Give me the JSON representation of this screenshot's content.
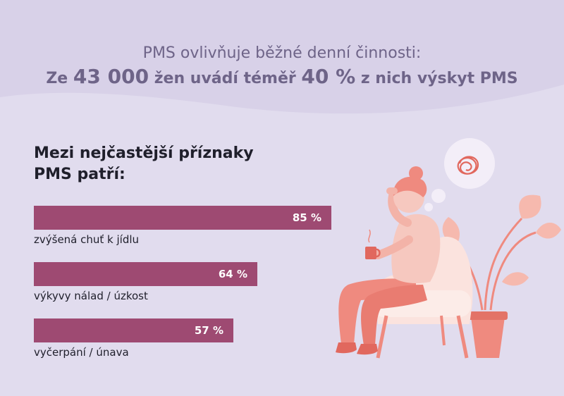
{
  "header": {
    "subtitle": "PMS ovlivňuje běžné denní činnosti:",
    "title_parts": [
      "Ze ",
      "43 000",
      " žen uvádí téměř ",
      "40 %",
      " z nich výskyt PMS"
    ]
  },
  "section_title": "Mezi nejčastější příznaky PMS patří:",
  "chart_data": {
    "type": "bar",
    "orientation": "horizontal",
    "title": "Mezi nejčastější příznaky PMS patří:",
    "unit": "%",
    "xlim": [
      0,
      100
    ],
    "grid": false,
    "categories": [
      "zvýšená chuť k jídlu",
      "výkyvy nálad / úzkost",
      "vyčerpání / únava"
    ],
    "values": [
      85,
      64,
      57
    ],
    "value_labels": [
      "85 %",
      "64 %",
      "57 %"
    ],
    "bar_color": "#9e4a72"
  },
  "colors": {
    "background": "#e1dcee",
    "wave": "#d6cfe6",
    "header_text": "#6e6488",
    "bar": "#9e4a72",
    "illustration_primary": "#ef8a7f",
    "illustration_light": "#f6c8bf",
    "chair": "#fbe3de"
  },
  "illustration": {
    "icon": "woman-with-headache-icon",
    "plant_icon": "potted-plant-icon",
    "thought_icon": "thought-bubble-scribble-icon",
    "cup_icon": "hot-drink-cup-icon"
  }
}
